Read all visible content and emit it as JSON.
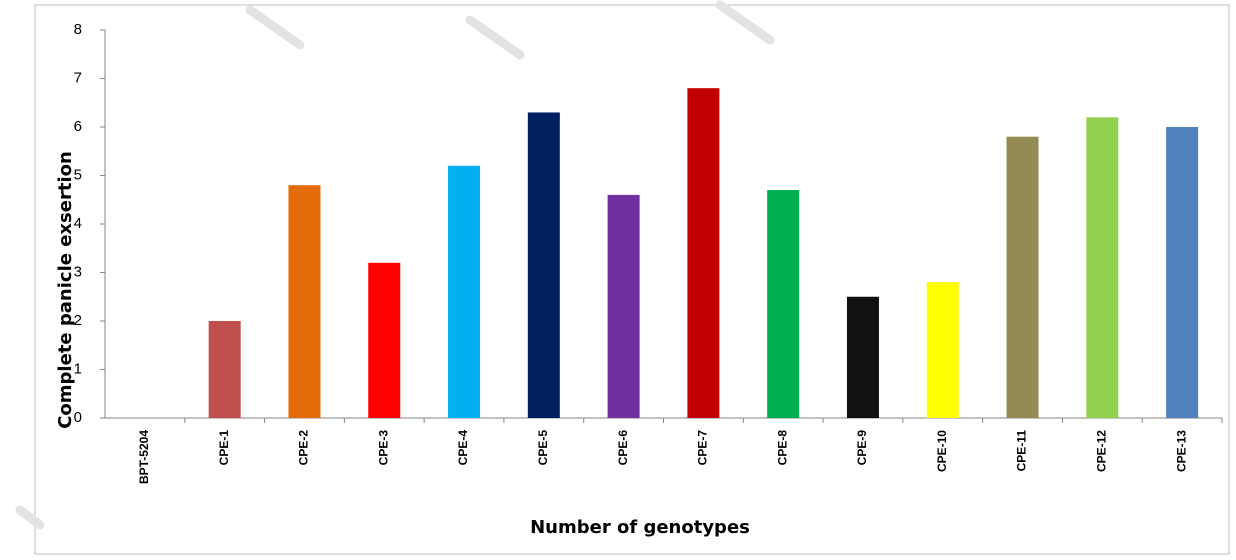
{
  "chart_data": {
    "type": "bar",
    "x_label": "Number of genotypes",
    "y_label": "Complete panicle exsertion",
    "categories": [
      "BPT-5204",
      "CPE-1",
      "CPE-2",
      "CPE-3",
      "CPE-4",
      "CPE-5",
      "CPE-6",
      "CPE-7",
      "CPE-8",
      "CPE-9",
      "CPE-10",
      "CPE-11",
      "CPE-12",
      "CPE-13"
    ],
    "values": [
      0,
      2,
      4.8,
      3.2,
      5.2,
      6.3,
      4.6,
      6.8,
      4.7,
      2.5,
      2.8,
      5.8,
      6.2,
      6.0
    ],
    "colors": [
      "#4f81bd",
      "#c0504d",
      "#e36c09",
      "#ff0000",
      "#00b0f0",
      "#002060",
      "#7030a0",
      "#c00000",
      "#00b050",
      "#111111",
      "#ffff00",
      "#948a54",
      "#92d050",
      "#4f81bd"
    ],
    "ylim": [
      0,
      8
    ],
    "yticks": [
      0,
      1,
      2,
      3,
      4,
      5,
      6,
      7,
      8
    ],
    "grid": false
  }
}
